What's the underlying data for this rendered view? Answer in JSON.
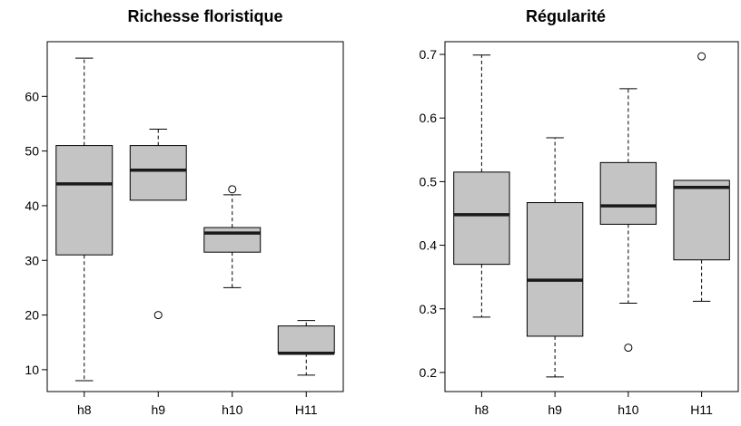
{
  "chart_data": [
    {
      "type": "box",
      "title": "Richesse floristique",
      "categories": [
        "h8",
        "h9",
        "h10",
        "H11"
      ],
      "ylim": [
        6,
        70
      ],
      "yticks": [
        10,
        20,
        30,
        40,
        50,
        60
      ],
      "grid": false,
      "boxes": [
        {
          "min": 8,
          "q1": 31,
          "median": 44,
          "q3": 51,
          "max": 67,
          "outliers": []
        },
        {
          "min": 41,
          "q1": 41,
          "median": 46.5,
          "q3": 51,
          "max": 54,
          "outliers": [
            20
          ]
        },
        {
          "min": 25,
          "q1": 31.5,
          "median": 35,
          "q3": 36,
          "max": 42,
          "outliers": [
            43
          ]
        },
        {
          "min": 9,
          "q1": 13,
          "median": 13,
          "q3": 18,
          "max": 19,
          "outliers": []
        }
      ]
    },
    {
      "type": "box",
      "title": "Régularité",
      "categories": [
        "h8",
        "h9",
        "h10",
        "H11"
      ],
      "ylim": [
        0.17,
        0.72
      ],
      "yticks": [
        0.2,
        0.3,
        0.4,
        0.5,
        0.6,
        0.7
      ],
      "grid": false,
      "boxes": [
        {
          "min": 0.287,
          "q1": 0.37,
          "median": 0.448,
          "q3": 0.515,
          "max": 0.699,
          "outliers": []
        },
        {
          "min": 0.193,
          "q1": 0.257,
          "median": 0.345,
          "q3": 0.467,
          "max": 0.569,
          "outliers": []
        },
        {
          "min": 0.309,
          "q1": 0.433,
          "median": 0.462,
          "q3": 0.53,
          "max": 0.646,
          "outliers": [
            0.239
          ]
        },
        {
          "min": 0.312,
          "q1": 0.377,
          "median": 0.491,
          "q3": 0.502,
          "max": 0.502,
          "outliers": [
            0.697
          ]
        }
      ]
    }
  ]
}
